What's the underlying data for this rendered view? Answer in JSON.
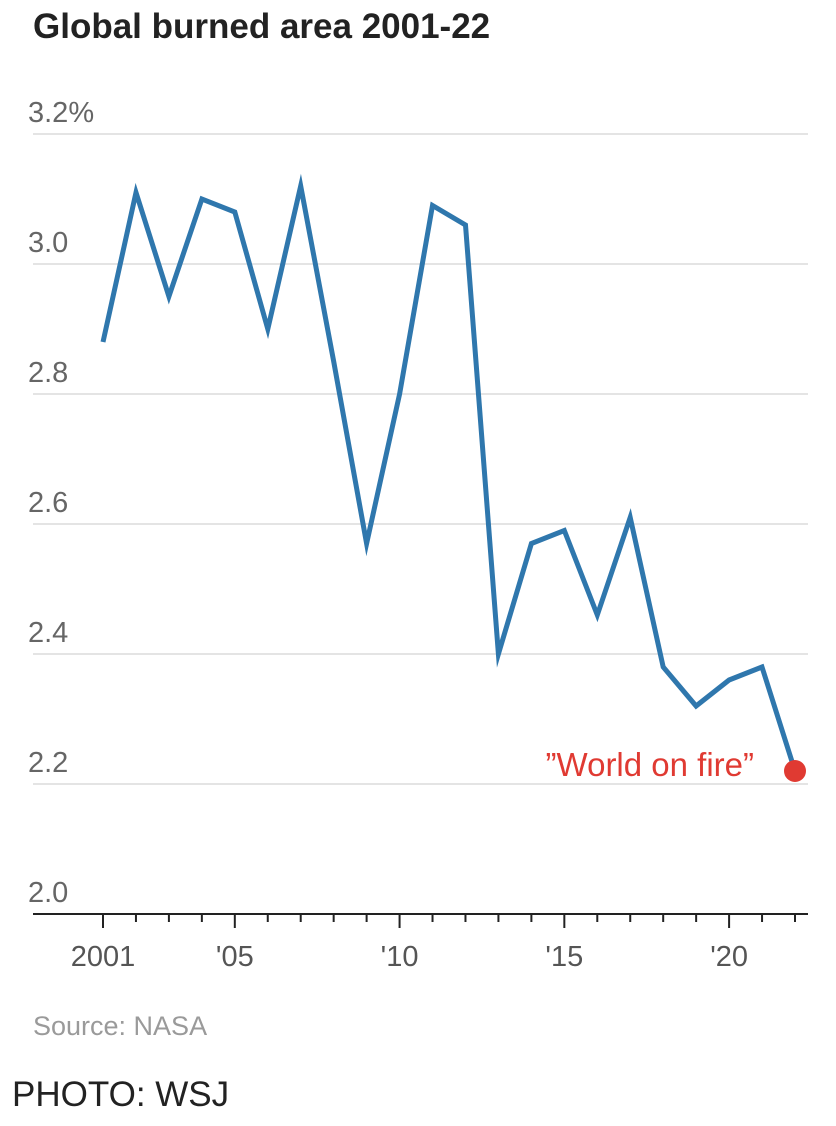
{
  "chart_data": {
    "type": "line",
    "title": "Global burned area 2001-22",
    "ylim": [
      2.0,
      3.2
    ],
    "y_ticks": [
      {
        "value": 3.2,
        "label": "3.2%"
      },
      {
        "value": 3.0,
        "label": "3.0"
      },
      {
        "value": 2.8,
        "label": "2.8"
      },
      {
        "value": 2.6,
        "label": "2.6"
      },
      {
        "value": 2.4,
        "label": "2.4"
      },
      {
        "value": 2.2,
        "label": "2.2"
      },
      {
        "value": 2.0,
        "label": "2.0"
      }
    ],
    "x": [
      2001,
      2002,
      2003,
      2004,
      2005,
      2006,
      2007,
      2008,
      2009,
      2010,
      2011,
      2012,
      2013,
      2014,
      2015,
      2016,
      2017,
      2018,
      2019,
      2020,
      2021,
      2022
    ],
    "x_ticks": [
      {
        "value": 2001,
        "label": "2001"
      },
      {
        "value": 2005,
        "label": "'05"
      },
      {
        "value": 2010,
        "label": "'10"
      },
      {
        "value": 2015,
        "label": "'15"
      },
      {
        "value": 2020,
        "label": "'20"
      }
    ],
    "series": [
      {
        "values": [
          2.88,
          3.11,
          2.95,
          3.1,
          3.08,
          2.9,
          3.12,
          2.85,
          2.57,
          2.8,
          3.09,
          3.06,
          2.4,
          2.57,
          2.59,
          2.46,
          2.61,
          2.38,
          2.32,
          2.36,
          2.38,
          2.22
        ]
      }
    ],
    "grid": true,
    "annotation": {
      "text": "”World on fire”",
      "x": 2022,
      "y": 2.22
    },
    "source": "Source: NASA"
  },
  "photo_credit": "PHOTO: WSJ",
  "colors": {
    "line": "#2f77ad",
    "highlight": "#e03a32"
  }
}
